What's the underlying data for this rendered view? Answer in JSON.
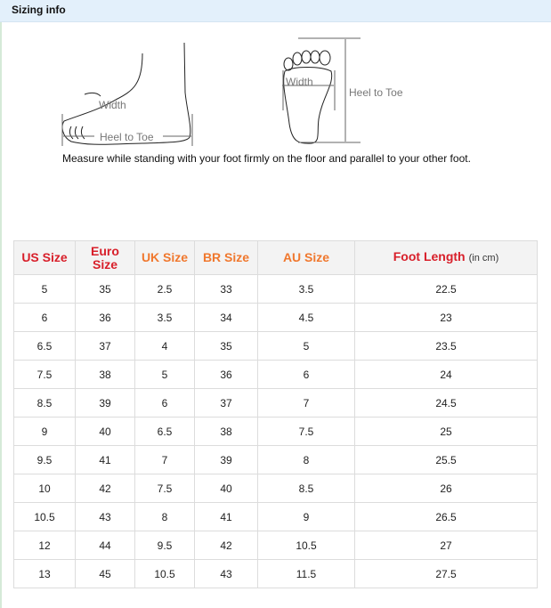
{
  "title": "Sizing info",
  "illustration": {
    "side_width_label": "Width",
    "side_length_label": "Heel to Toe",
    "sole_width_label": "Width",
    "sole_length_label": "Heel to Toe",
    "instruction": "Measure while standing with your foot firmly on the floor and parallel to your other foot."
  },
  "colors": {
    "header_red": "#d81f2a",
    "header_orange": "#f0782e",
    "titlebar": "#e3f0fb"
  },
  "table": {
    "headers": [
      {
        "label": "US Size"
      },
      {
        "label": "Euro Size"
      },
      {
        "label": "UK Size"
      },
      {
        "label": "BR Size"
      },
      {
        "label": "AU Size"
      },
      {
        "label": "Foot Length",
        "unit": "(in cm)"
      }
    ],
    "rows": [
      [
        "5",
        "35",
        "2.5",
        "33",
        "3.5",
        "22.5"
      ],
      [
        "6",
        "36",
        "3.5",
        "34",
        "4.5",
        "23"
      ],
      [
        "6.5",
        "37",
        "4",
        "35",
        "5",
        "23.5"
      ],
      [
        "7.5",
        "38",
        "5",
        "36",
        "6",
        "24"
      ],
      [
        "8.5",
        "39",
        "6",
        "37",
        "7",
        "24.5"
      ],
      [
        "9",
        "40",
        "6.5",
        "38",
        "7.5",
        "25"
      ],
      [
        "9.5",
        "41",
        "7",
        "39",
        "8",
        "25.5"
      ],
      [
        "10",
        "42",
        "7.5",
        "40",
        "8.5",
        "26"
      ],
      [
        "10.5",
        "43",
        "8",
        "41",
        "9",
        "26.5"
      ],
      [
        "12",
        "44",
        "9.5",
        "42",
        "10.5",
        "27"
      ],
      [
        "13",
        "45",
        "10.5",
        "43",
        "11.5",
        "27.5"
      ]
    ]
  }
}
